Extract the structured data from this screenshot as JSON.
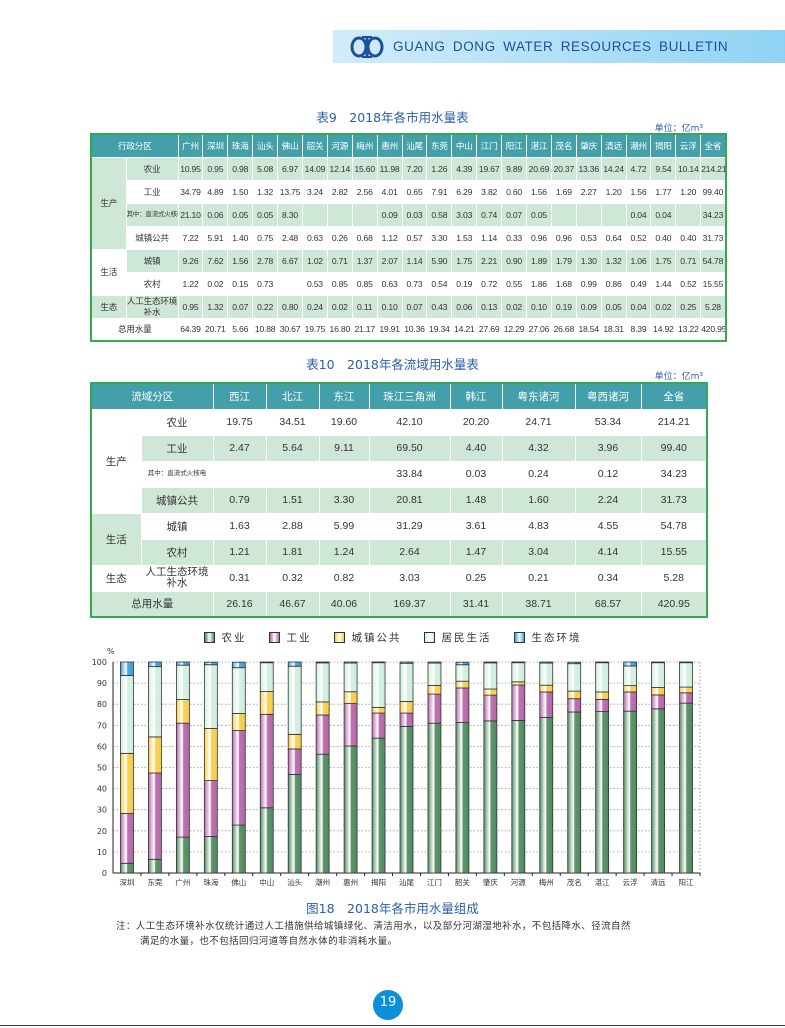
{
  "header": {
    "title": "GUANG DONG WATER RESOURCES BULLETIN",
    "logo_icon": "water-resources-logo"
  },
  "table9": {
    "title": "表9　2018年各市用水量表",
    "unit": "单位：亿m³",
    "corner": "行政分区",
    "columns": [
      "广州",
      "深圳",
      "珠海",
      "汕头",
      "佛山",
      "韶关",
      "河源",
      "梅州",
      "惠州",
      "汕尾",
      "东莞",
      "中山",
      "江门",
      "阳江",
      "湛江",
      "茂名",
      "肇庆",
      "清远",
      "潮州",
      "揭阳",
      "云浮",
      "全省"
    ],
    "rows": [
      {
        "group": "生产",
        "label": "农业",
        "values": [
          "10.95",
          "0.95",
          "0.98",
          "5.08",
          "6.97",
          "14.09",
          "12.14",
          "15.60",
          "11.98",
          "7.20",
          "1.26",
          "4.39",
          "19.67",
          "9.89",
          "20.69",
          "20.37",
          "13.36",
          "14.24",
          "4.72",
          "9.54",
          "10.14",
          "214.21"
        ]
      },
      {
        "group": "生产",
        "label": "工业",
        "values": [
          "34.79",
          "4.89",
          "1.50",
          "1.32",
          "13.75",
          "3.24",
          "2.82",
          "2.56",
          "4.01",
          "0.65",
          "7.91",
          "6.29",
          "3.82",
          "0.60",
          "1.56",
          "1.69",
          "2.27",
          "1.20",
          "1.56",
          "1.77",
          "1.20",
          "99.40"
        ]
      },
      {
        "group": "生产",
        "label": "其中：直流式火核电",
        "values": [
          "21.10",
          "0.06",
          "0.05",
          "0.05",
          "8.30",
          "",
          "",
          "",
          "0.09",
          "0.03",
          "0.58",
          "3.03",
          "0.74",
          "0.07",
          "0.05",
          "",
          "",
          "",
          "0.04",
          "0.04",
          "",
          "34.23"
        ]
      },
      {
        "group": "生产",
        "label": "城镇公共",
        "values": [
          "7.22",
          "5.91",
          "1.40",
          "0.75",
          "2.48",
          "0.63",
          "0.26",
          "0.68",
          "1.12",
          "0.57",
          "3.30",
          "1.53",
          "1.14",
          "0.33",
          "0.96",
          "0.96",
          "0.53",
          "0.64",
          "0.52",
          "0.40",
          "0.40",
          "31.73"
        ]
      },
      {
        "group": "生活",
        "label": "城镇",
        "values": [
          "9.26",
          "7.62",
          "1.56",
          "2.78",
          "6.67",
          "1.02",
          "0.71",
          "1.37",
          "2.07",
          "1.14",
          "5.90",
          "1.75",
          "2.21",
          "0.90",
          "1.89",
          "1.79",
          "1.30",
          "1.32",
          "1.06",
          "1.75",
          "0.71",
          "54.78"
        ]
      },
      {
        "group": "生活",
        "label": "农村",
        "values": [
          "1.22",
          "0.02",
          "0.15",
          "0.73",
          "",
          "0.53",
          "0.85",
          "0.85",
          "0.63",
          "0.73",
          "0.54",
          "0.19",
          "0.72",
          "0.55",
          "1.86",
          "1.68",
          "0.99",
          "0.86",
          "0.49",
          "1.44",
          "0.52",
          "15.55"
        ]
      },
      {
        "group": "生态",
        "label": "人工生态环境补水",
        "values": [
          "0.95",
          "1.32",
          "0.07",
          "0.22",
          "0.80",
          "0.24",
          "0.02",
          "0.11",
          "0.10",
          "0.07",
          "0.43",
          "0.06",
          "0.13",
          "0.02",
          "0.10",
          "0.19",
          "0.09",
          "0.05",
          "0.04",
          "0.02",
          "0.25",
          "5.28"
        ]
      },
      {
        "group": "",
        "label": "总用水量",
        "values": [
          "64.39",
          "20.71",
          "5.66",
          "10.88",
          "30.67",
          "19.75",
          "16.80",
          "21.17",
          "19.91",
          "10.36",
          "19.34",
          "14.21",
          "27.69",
          "12.29",
          "27.06",
          "26.68",
          "18.54",
          "18.31",
          "8.39",
          "14.92",
          "13.22",
          "420.95"
        ]
      }
    ]
  },
  "table10": {
    "title": "表10　2018年各流域用水量表",
    "unit": "单位：亿m³",
    "corner": "流域分区",
    "columns": [
      "西江",
      "北江",
      "东江",
      "珠江三角洲",
      "韩江",
      "粤东诸河",
      "粤西诸河",
      "全省"
    ],
    "rows": [
      {
        "group": "生产",
        "label": "农业",
        "values": [
          "19.75",
          "34.51",
          "19.60",
          "42.10",
          "20.20",
          "24.71",
          "53.34",
          "214.21"
        ]
      },
      {
        "group": "生产",
        "label": "工业",
        "values": [
          "2.47",
          "5.64",
          "9.11",
          "69.50",
          "4.40",
          "4.32",
          "3.96",
          "99.40"
        ]
      },
      {
        "group": "生产",
        "label": "其中：直流式火核电",
        "values": [
          "",
          "",
          "",
          "33.84",
          "0.03",
          "0.24",
          "0.12",
          "34.23"
        ]
      },
      {
        "group": "生产",
        "label": "城镇公共",
        "values": [
          "0.79",
          "1.51",
          "3.30",
          "20.81",
          "1.48",
          "1.60",
          "2.24",
          "31.73"
        ]
      },
      {
        "group": "生活",
        "label": "城镇",
        "values": [
          "1.63",
          "2.88",
          "5.99",
          "31.29",
          "3.61",
          "4.83",
          "4.55",
          "54.78"
        ]
      },
      {
        "group": "生活",
        "label": "农村",
        "values": [
          "1.21",
          "1.81",
          "1.24",
          "2.64",
          "1.47",
          "3.04",
          "4.14",
          "15.55"
        ]
      },
      {
        "group": "生态",
        "label": "人工生态环境补水",
        "values": [
          "0.31",
          "0.32",
          "0.82",
          "3.03",
          "0.25",
          "0.21",
          "0.34",
          "5.28"
        ]
      },
      {
        "group": "",
        "label": "总用水量",
        "values": [
          "26.16",
          "46.67",
          "40.06",
          "169.37",
          "31.41",
          "38.71",
          "68.57",
          "420.95"
        ]
      }
    ]
  },
  "chart_data": {
    "type": "bar",
    "stacked": true,
    "title": "图18　2018年各市用水量组成",
    "ylabel": "%",
    "ylim": [
      0,
      100
    ],
    "yticks": [
      0,
      10,
      20,
      30,
      40,
      50,
      60,
      70,
      80,
      90,
      100
    ],
    "grid": true,
    "legend": "top",
    "categories": [
      "深圳",
      "东莞",
      "广州",
      "珠海",
      "佛山",
      "中山",
      "汕头",
      "潮州",
      "惠州",
      "揭阳",
      "汕尾",
      "江门",
      "韶关",
      "肇庆",
      "河源",
      "梅州",
      "茂名",
      "湛江",
      "云浮",
      "清远",
      "阳江"
    ],
    "series": [
      {
        "name": "农业",
        "color": "#4f8a5e",
        "values": [
          4.6,
          6.5,
          17.0,
          17.3,
          22.7,
          30.9,
          46.7,
          56.3,
          60.2,
          63.9,
          69.5,
          71.0,
          71.3,
          72.1,
          72.3,
          73.7,
          76.3,
          76.5,
          76.7,
          77.8,
          80.5
        ]
      },
      {
        "name": "工业",
        "color": "#b565a8",
        "values": [
          23.6,
          40.9,
          54.0,
          26.5,
          44.8,
          44.3,
          12.1,
          18.6,
          20.1,
          11.9,
          6.3,
          13.8,
          16.4,
          12.2,
          16.8,
          12.1,
          6.3,
          5.8,
          9.1,
          6.6,
          4.9
        ]
      },
      {
        "name": "城镇公共",
        "color": "#f7cc46",
        "values": [
          28.5,
          17.1,
          11.2,
          24.7,
          8.1,
          10.8,
          6.9,
          6.2,
          5.6,
          2.7,
          5.5,
          4.1,
          3.2,
          2.9,
          1.5,
          3.2,
          3.6,
          3.5,
          3.0,
          3.5,
          2.7
        ]
      },
      {
        "name": "居民生活",
        "color": "#cfeedd",
        "values": [
          36.9,
          33.3,
          16.3,
          30.2,
          21.7,
          13.7,
          32.3,
          18.5,
          13.6,
          21.4,
          18.1,
          10.6,
          7.8,
          12.4,
          9.3,
          10.5,
          13.0,
          13.9,
          9.3,
          11.9,
          11.8
        ]
      },
      {
        "name": "生态环境",
        "color": "#3c9ee0",
        "values": [
          6.4,
          2.2,
          1.5,
          1.2,
          2.6,
          0.4,
          2.0,
          0.5,
          0.5,
          0.1,
          0.7,
          0.5,
          1.2,
          0.5,
          0.1,
          0.5,
          0.7,
          0.4,
          1.9,
          0.3,
          0.2
        ]
      }
    ]
  },
  "note": {
    "line1": "注：人工生态环境补水仅统计通过人工措施供给城镇绿化、清洁用水，以及部分河湖湿地补水，不包括降水、径流自然",
    "line2": "满足的水量，也不包括回归河道等自然水体的非消耗水量。"
  },
  "page_number": "19"
}
